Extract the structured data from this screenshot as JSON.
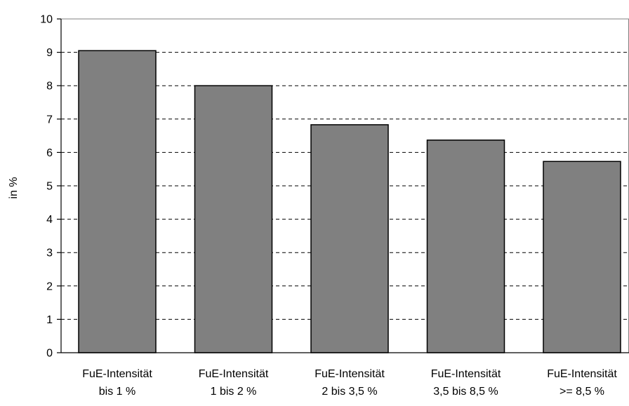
{
  "chart_data": {
    "type": "bar",
    "title": "",
    "xlabel": "",
    "ylabel": "in %",
    "ylim": [
      0,
      10
    ],
    "yticks": [
      "0",
      "1",
      "2",
      "3",
      "4",
      "5",
      "6",
      "7",
      "8",
      "9",
      "10"
    ],
    "grid": true,
    "legend": "none",
    "categories": [
      [
        "FuE-Intensität",
        "bis 1 %"
      ],
      [
        "FuE-Intensität",
        "1 bis 2 %"
      ],
      [
        "FuE-Intensität",
        "2 bis 3,5 %"
      ],
      [
        "FuE-Intensität",
        "3,5 bis 8,5 %"
      ],
      [
        "FuE-Intensität",
        ">= 8,5 %"
      ]
    ],
    "values": [
      9.05,
      8.0,
      6.83,
      6.37,
      5.73
    ],
    "colors": {
      "bar_fill": "#808080",
      "bar_stroke": "#000000",
      "grid": "#000000",
      "axis": "#000000",
      "frame": "#808080"
    }
  }
}
